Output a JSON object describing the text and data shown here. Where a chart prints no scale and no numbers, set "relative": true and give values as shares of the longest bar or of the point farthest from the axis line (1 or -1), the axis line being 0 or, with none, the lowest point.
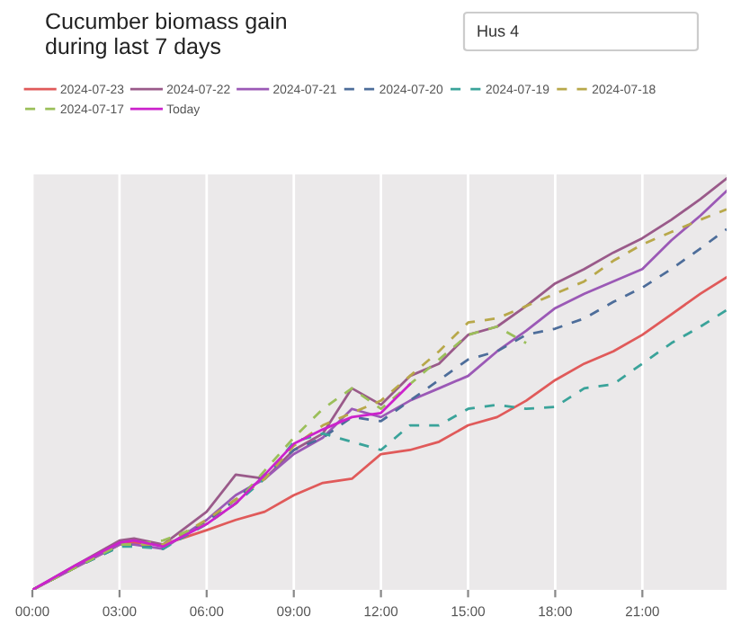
{
  "chart_data": {
    "type": "line",
    "title": "Cucumber biomass gain\nduring last 7 days",
    "annotations": [
      "Hus 4"
    ],
    "relative": true,
    "x": [
      0,
      1.5,
      3,
      3.5,
      4.5,
      6,
      7,
      8,
      9,
      10,
      11,
      12,
      13,
      14,
      15,
      16,
      17,
      18,
      19,
      20,
      21,
      22,
      23,
      23.9
    ],
    "xlim": [
      0,
      23.9
    ],
    "xticks": [
      {
        "value": 0,
        "label": "00:00"
      },
      {
        "value": 3,
        "label": "03:00"
      },
      {
        "value": 6,
        "label": "06:00"
      },
      {
        "value": 9,
        "label": "09:00"
      },
      {
        "value": 12,
        "label": "12:00"
      },
      {
        "value": 15,
        "label": "15:00"
      },
      {
        "value": 18,
        "label": "18:00"
      },
      {
        "value": 21,
        "label": "21:00"
      }
    ],
    "grid": "x",
    "legend": "top",
    "tick_labels": "x",
    "series": [
      {
        "name": "2024-07-23",
        "color": "#e05a5a",
        "line_style": "solid",
        "values": [
          0,
          0.055,
          0.11,
          0.115,
          0.11,
          0.145,
          0.17,
          0.19,
          0.23,
          0.26,
          0.27,
          0.33,
          0.34,
          0.36,
          0.4,
          0.42,
          0.46,
          0.51,
          0.55,
          0.58,
          0.62,
          0.67,
          0.72,
          0.76
        ]
      },
      {
        "name": "2024-07-22",
        "color": "#9a5a8a",
        "line_style": "solid",
        "values": [
          0,
          0.06,
          0.12,
          0.125,
          0.11,
          0.19,
          0.28,
          0.27,
          0.34,
          0.38,
          0.49,
          0.45,
          0.52,
          0.55,
          0.62,
          0.64,
          0.69,
          0.745,
          0.78,
          0.82,
          0.855,
          0.9,
          0.95,
          1.0
        ]
      },
      {
        "name": "2024-07-21",
        "color": "#9b59b6",
        "line_style": "solid",
        "values": [
          0,
          0.055,
          0.11,
          0.11,
          0.1,
          0.17,
          0.23,
          0.27,
          0.33,
          0.37,
          0.44,
          0.42,
          0.46,
          0.49,
          0.52,
          0.58,
          0.63,
          0.685,
          0.72,
          0.75,
          0.78,
          0.85,
          0.91,
          0.97
        ]
      },
      {
        "name": "2024-07-20",
        "color": "#4d6d9a",
        "line_style": "dashed",
        "values": [
          0,
          0.055,
          0.105,
          0.11,
          0.1,
          0.165,
          0.22,
          0.28,
          0.34,
          0.37,
          0.42,
          0.41,
          0.46,
          0.51,
          0.56,
          0.58,
          0.62,
          0.635,
          0.66,
          0.7,
          0.735,
          0.78,
          0.83,
          0.877
        ]
      },
      {
        "name": "2024-07-19",
        "color": "#3aa39a",
        "line_style": "dashed",
        "values": [
          0,
          0.055,
          0.105,
          0.105,
          0.1,
          0.16,
          0.21,
          0.27,
          0.36,
          0.38,
          0.36,
          0.34,
          0.4,
          0.4,
          0.44,
          0.45,
          0.44,
          0.445,
          0.49,
          0.5,
          0.55,
          0.6,
          0.64,
          0.68
        ]
      },
      {
        "name": "2024-07-18",
        "color": "#b8a84a",
        "line_style": "dashed",
        "values": [
          0,
          0.055,
          0.11,
          0.11,
          0.11,
          0.17,
          0.22,
          0.27,
          0.35,
          0.4,
          0.43,
          0.46,
          0.52,
          0.58,
          0.65,
          0.66,
          0.69,
          0.72,
          0.75,
          0.8,
          0.84,
          0.87,
          0.9,
          0.925
        ]
      },
      {
        "name": "2024-07-17",
        "color": "#9bbf5a",
        "line_style": "dashed",
        "values": [
          0,
          0.055,
          0.11,
          0.11,
          0.12,
          0.16,
          0.21,
          0.29,
          0.37,
          0.44,
          0.49,
          0.44,
          0.5,
          0.56,
          0.62,
          0.64,
          0.6,
          null,
          null,
          null,
          null,
          null,
          null,
          null
        ]
      },
      {
        "name": "Today",
        "color": "#cc22cc",
        "line_style": "solid",
        "values": [
          0,
          0.06,
          0.115,
          0.12,
          0.105,
          0.16,
          0.21,
          0.28,
          0.355,
          0.39,
          0.42,
          0.43,
          0.5,
          null,
          null,
          null,
          null,
          null,
          null,
          null,
          null,
          null,
          null,
          null
        ]
      }
    ]
  }
}
